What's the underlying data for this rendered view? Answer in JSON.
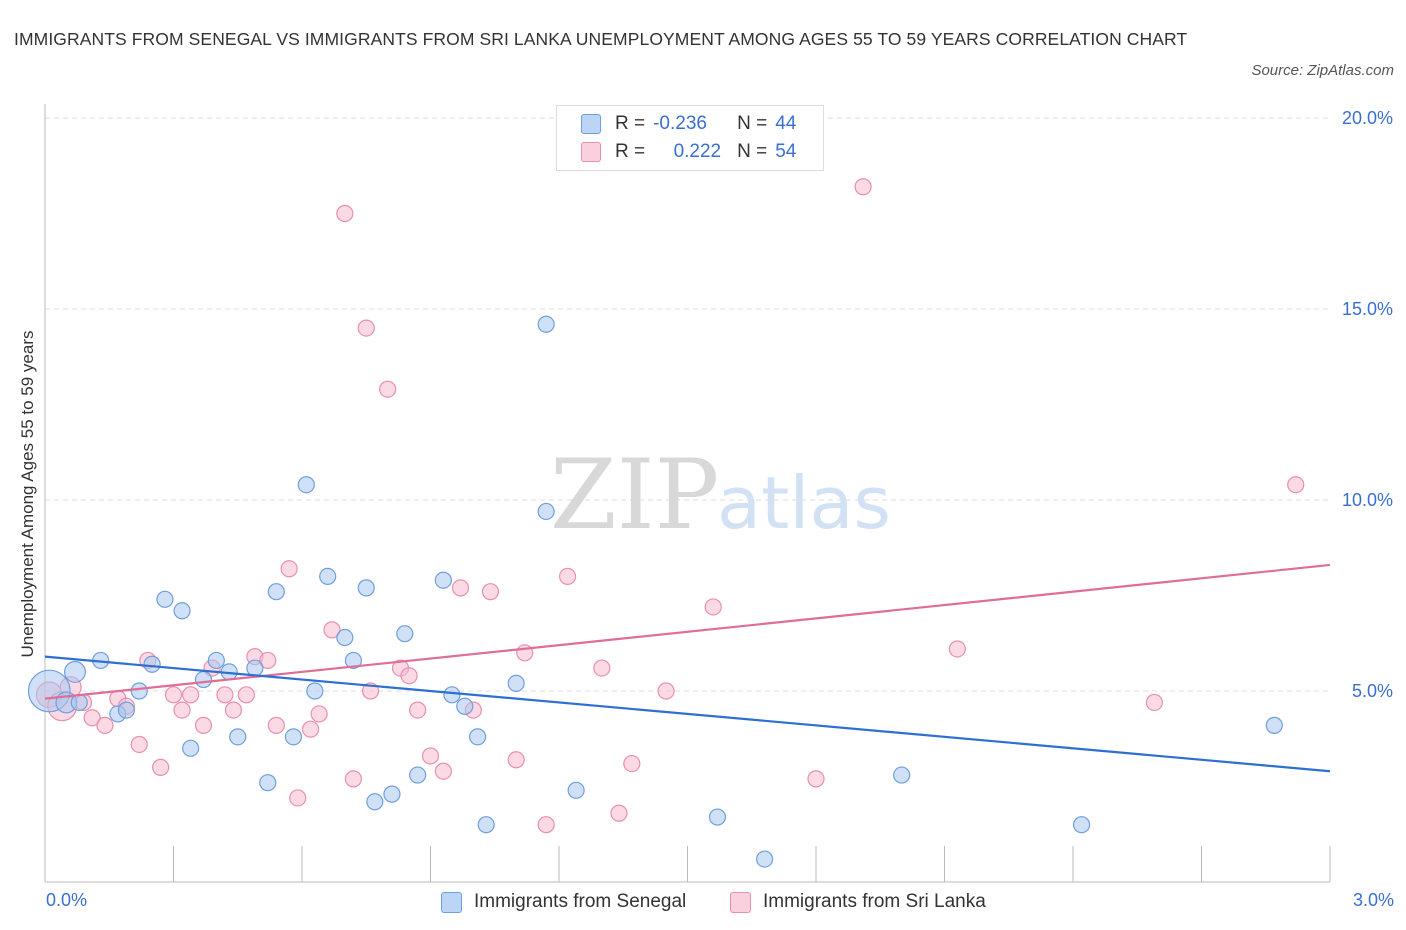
{
  "title": "IMMIGRANTS FROM SENEGAL VS IMMIGRANTS FROM SRI LANKA UNEMPLOYMENT AMONG AGES 55 TO 59 YEARS CORRELATION CHART",
  "source": "Source: ZipAtlas.com",
  "watermark": {
    "zip": "ZIP",
    "atlas": "atlas"
  },
  "legend": {
    "series1": {
      "r_label": "R =",
      "r_value": "-0.236",
      "n_label": "N =",
      "n_value": "44"
    },
    "series2": {
      "r_label": "R =",
      "r_value": "0.222",
      "n_label": "N =",
      "n_value": "54"
    }
  },
  "colors": {
    "senegal_fill": "#aac8f0",
    "senegal_stroke": "#6f9fdc",
    "senegal_line": "#2d6fd2",
    "srilanka_fill": "#f7bcd0",
    "srilanka_stroke": "#e98fae",
    "srilanka_line": "#e06d98",
    "tick_label": "#3a6fd0",
    "grid": "#dddddd"
  },
  "chart_data": {
    "type": "scatter",
    "title": "IMMIGRANTS FROM SENEGAL VS IMMIGRANTS FROM SRI LANKA UNEMPLOYMENT AMONG AGES 55 TO 59 YEARS CORRELATION CHART",
    "xlabel": "",
    "ylabel": "Unemployment Among Ages 55 to 59 years",
    "xlim": [
      0,
      3.0
    ],
    "ylim": [
      0,
      20.0
    ],
    "x_tick_labels": [
      "0.0%",
      "3.0%"
    ],
    "y_ticks": [
      5,
      10,
      15,
      20
    ],
    "y_tick_labels": [
      "5.0%",
      "10.0%",
      "15.0%",
      "20.0%"
    ],
    "grid": "horizontal dashed",
    "legend_position": "bottom",
    "series": [
      {
        "name": "Immigrants from Senegal",
        "r": -0.236,
        "n": 44,
        "trend": {
          "x": [
            0,
            3.0
          ],
          "y": [
            5.9,
            2.9
          ]
        },
        "points": [
          [
            0.01,
            5.0,
            2.6
          ],
          [
            0.05,
            4.7,
            1.3
          ],
          [
            0.07,
            5.5,
            1.3
          ],
          [
            0.08,
            4.7,
            1
          ],
          [
            0.13,
            5.8,
            1
          ],
          [
            0.17,
            4.4,
            1
          ],
          [
            0.19,
            4.5,
            1
          ],
          [
            0.22,
            5.0,
            1
          ],
          [
            0.25,
            5.7,
            1
          ],
          [
            0.28,
            7.4,
            1
          ],
          [
            0.32,
            7.1,
            1
          ],
          [
            0.34,
            3.5,
            1
          ],
          [
            0.37,
            5.3,
            1
          ],
          [
            0.4,
            5.8,
            1
          ],
          [
            0.43,
            5.5,
            1
          ],
          [
            0.45,
            3.8,
            1
          ],
          [
            0.49,
            5.6,
            1
          ],
          [
            0.52,
            2.6,
            1
          ],
          [
            0.54,
            7.6,
            1
          ],
          [
            0.58,
            3.8,
            1
          ],
          [
            0.61,
            10.4,
            1
          ],
          [
            0.63,
            5.0,
            1
          ],
          [
            0.66,
            8.0,
            1
          ],
          [
            0.7,
            6.4,
            1
          ],
          [
            0.72,
            5.8,
            1
          ],
          [
            0.75,
            7.7,
            1
          ],
          [
            0.77,
            2.1,
            1
          ],
          [
            0.81,
            2.3,
            1
          ],
          [
            0.84,
            6.5,
            1
          ],
          [
            0.87,
            2.8,
            1
          ],
          [
            0.93,
            7.9,
            1
          ],
          [
            0.95,
            4.9,
            1
          ],
          [
            0.98,
            4.6,
            1
          ],
          [
            1.01,
            3.8,
            1
          ],
          [
            1.03,
            1.5,
            1
          ],
          [
            1.1,
            5.2,
            1
          ],
          [
            1.17,
            9.7,
            1
          ],
          [
            1.17,
            14.6,
            1
          ],
          [
            1.24,
            2.4,
            1
          ],
          [
            1.57,
            1.7,
            1
          ],
          [
            1.68,
            0.6,
            1
          ],
          [
            2.0,
            2.8,
            1
          ],
          [
            2.42,
            1.5,
            1
          ],
          [
            2.87,
            4.1,
            1
          ]
        ]
      },
      {
        "name": "Immigrants from Sri Lanka",
        "r": 0.222,
        "n": 54,
        "trend": {
          "x": [
            0,
            3.0
          ],
          "y": [
            4.8,
            8.3
          ]
        },
        "points": [
          [
            0.01,
            4.9,
            1.6
          ],
          [
            0.04,
            4.6,
            1.8
          ],
          [
            0.06,
            5.1,
            1.3
          ],
          [
            0.09,
            4.7,
            1
          ],
          [
            0.11,
            4.3,
            1
          ],
          [
            0.14,
            4.1,
            1
          ],
          [
            0.17,
            4.8,
            1
          ],
          [
            0.19,
            4.6,
            1
          ],
          [
            0.22,
            3.6,
            1
          ],
          [
            0.24,
            5.8,
            1
          ],
          [
            0.27,
            3.0,
            1
          ],
          [
            0.3,
            4.9,
            1
          ],
          [
            0.32,
            4.5,
            1
          ],
          [
            0.34,
            4.9,
            1
          ],
          [
            0.37,
            4.1,
            1
          ],
          [
            0.39,
            5.6,
            1
          ],
          [
            0.42,
            4.9,
            1
          ],
          [
            0.44,
            4.5,
            1
          ],
          [
            0.47,
            4.9,
            1
          ],
          [
            0.49,
            5.9,
            1
          ],
          [
            0.52,
            5.8,
            1
          ],
          [
            0.54,
            4.1,
            1
          ],
          [
            0.57,
            8.2,
            1
          ],
          [
            0.59,
            2.2,
            1
          ],
          [
            0.62,
            4.0,
            1
          ],
          [
            0.64,
            4.4,
            1
          ],
          [
            0.67,
            6.6,
            1
          ],
          [
            0.7,
            17.5,
            1
          ],
          [
            0.72,
            2.7,
            1
          ],
          [
            0.75,
            14.5,
            1
          ],
          [
            0.76,
            5.0,
            1
          ],
          [
            0.8,
            12.9,
            1
          ],
          [
            0.83,
            5.6,
            1
          ],
          [
            0.85,
            5.4,
            1
          ],
          [
            0.87,
            4.5,
            1
          ],
          [
            0.9,
            3.3,
            1
          ],
          [
            0.93,
            2.9,
            1
          ],
          [
            0.97,
            7.7,
            1
          ],
          [
            1.0,
            4.5,
            1
          ],
          [
            1.04,
            7.6,
            1
          ],
          [
            1.1,
            3.2,
            1
          ],
          [
            1.12,
            6.0,
            1
          ],
          [
            1.17,
            1.5,
            1
          ],
          [
            1.22,
            8.0,
            1
          ],
          [
            1.3,
            5.6,
            1
          ],
          [
            1.34,
            1.8,
            1
          ],
          [
            1.37,
            3.1,
            1
          ],
          [
            1.45,
            5.0,
            1
          ],
          [
            1.56,
            7.2,
            1
          ],
          [
            1.8,
            2.7,
            1
          ],
          [
            1.91,
            18.2,
            1
          ],
          [
            2.13,
            6.1,
            1
          ],
          [
            2.59,
            4.7,
            1
          ],
          [
            2.92,
            10.4,
            1
          ]
        ]
      }
    ]
  }
}
